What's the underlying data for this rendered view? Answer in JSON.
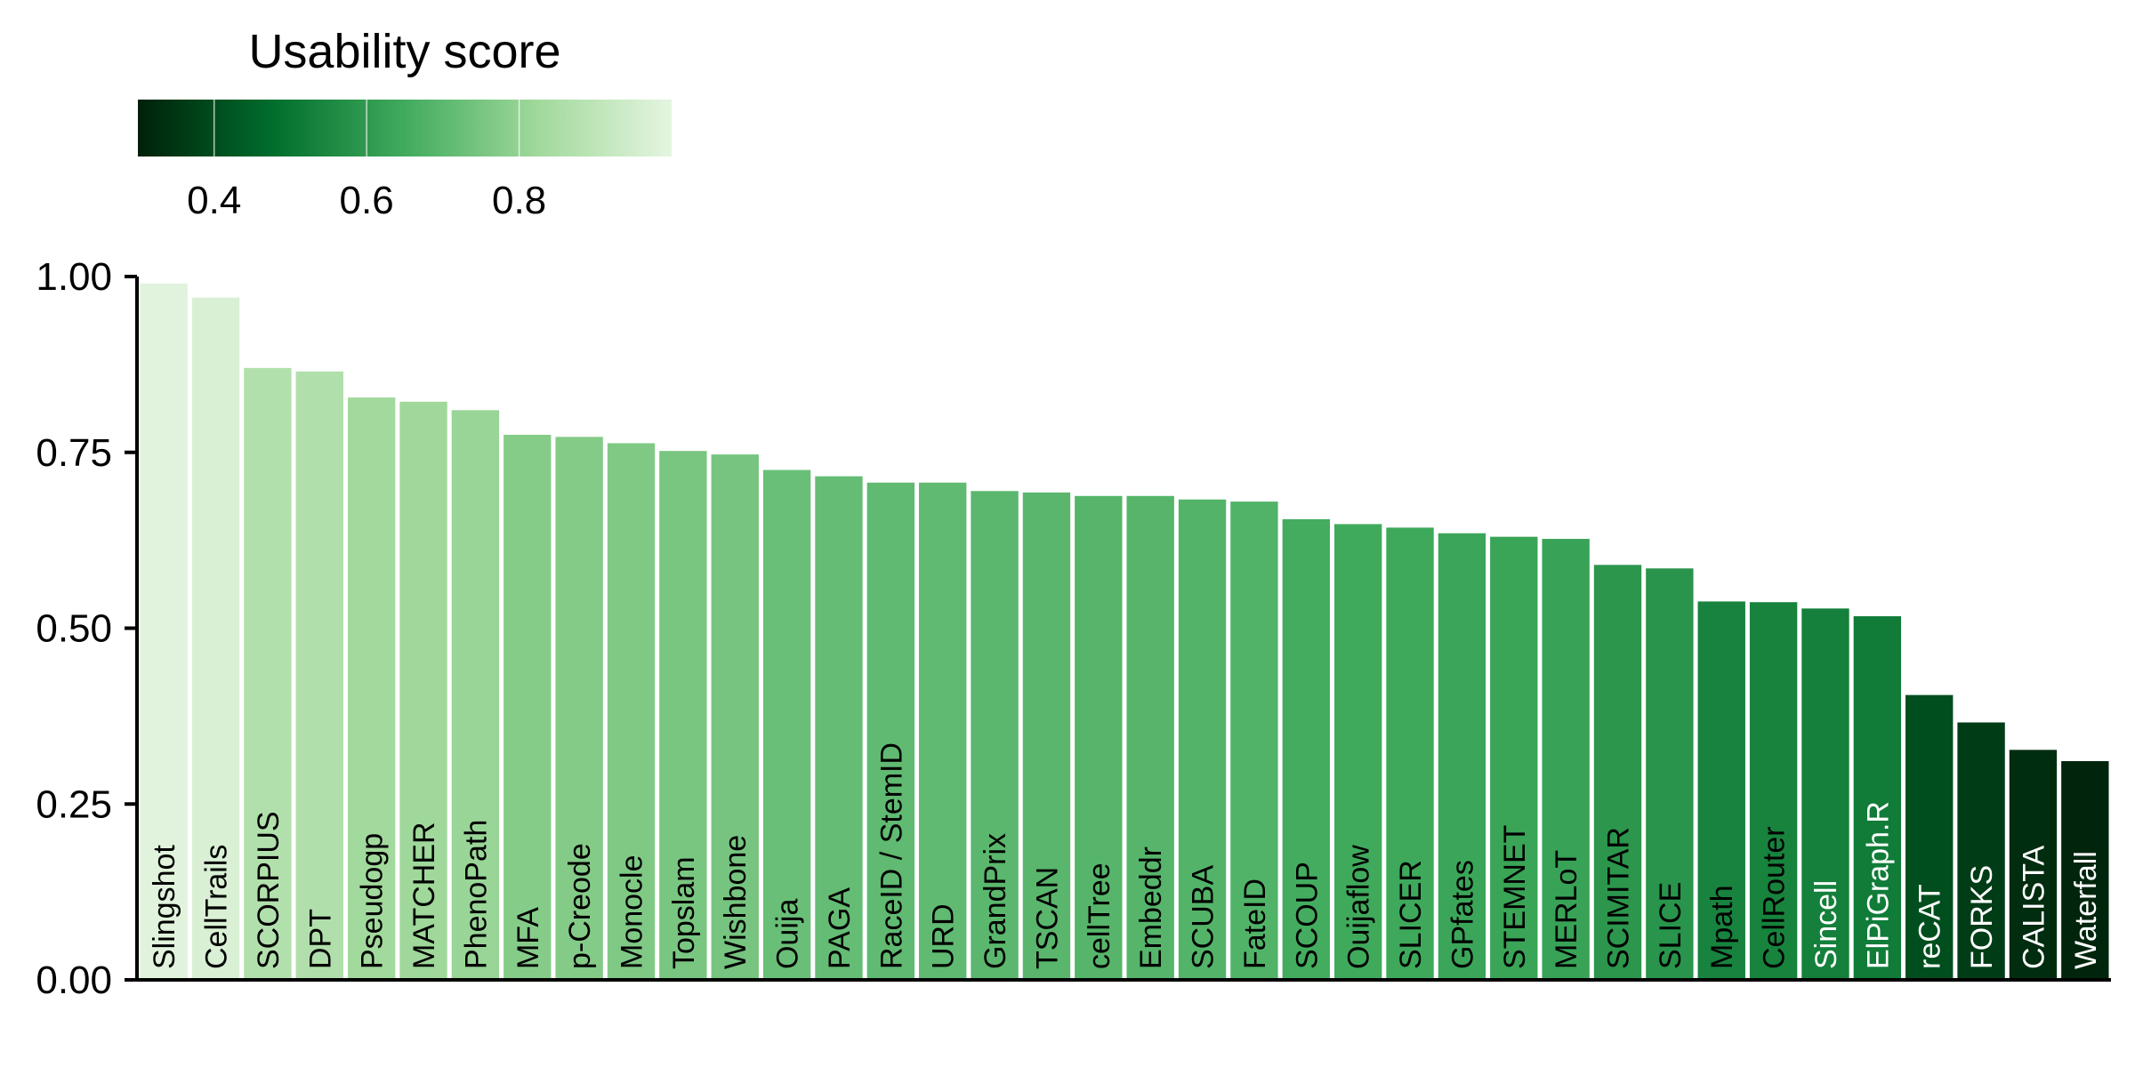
{
  "chart_data": {
    "type": "bar",
    "title": "",
    "xlabel": "",
    "ylabel": "",
    "ylim": [
      0,
      1
    ],
    "yticks": [
      {
        "value": 0.0,
        "label": "0.00"
      },
      {
        "value": 0.25,
        "label": "0.25"
      },
      {
        "value": 0.5,
        "label": "0.50"
      },
      {
        "value": 0.75,
        "label": "0.75"
      },
      {
        "value": 1.0,
        "label": "1.00"
      }
    ],
    "categories": [
      "Slingshot",
      "CellTrails",
      "SCORPIUS",
      "DPT",
      "Pseudogp",
      "MATCHER",
      "PhenoPath",
      "MFA",
      "p-Creode",
      "Monocle",
      "Topslam",
      "Wishbone",
      "Ouija",
      "PAGA",
      "RaceID / StemID",
      "URD",
      "GrandPrix",
      "TSCAN",
      "cellTree",
      "Embeddr",
      "SCUBA",
      "FateID",
      "SCOUP",
      "Ouijaflow",
      "SLICER",
      "GPfates",
      "STEMNET",
      "MERLoT",
      "SCIMITAR",
      "SLICE",
      "Mpath",
      "CellRouter",
      "Sincell",
      "ElPiGraph.R",
      "reCAT",
      "FORKS",
      "CALISTA",
      "Waterfall"
    ],
    "values": [
      0.99,
      0.97,
      0.87,
      0.865,
      0.828,
      0.822,
      0.81,
      0.775,
      0.772,
      0.763,
      0.752,
      0.747,
      0.725,
      0.716,
      0.707,
      0.707,
      0.695,
      0.693,
      0.688,
      0.688,
      0.683,
      0.68,
      0.655,
      0.648,
      0.643,
      0.635,
      0.63,
      0.627,
      0.59,
      0.585,
      0.538,
      0.537,
      0.528,
      0.517,
      0.405,
      0.366,
      0.327,
      0.311
    ],
    "grid": false,
    "legend": "none",
    "colorbar": {
      "title": "Usability score",
      "placement": "top-left",
      "range": [
        0.3,
        1.0
      ],
      "ticks": [
        {
          "value": 0.4,
          "label": "0.4"
        },
        {
          "value": 0.6,
          "label": "0.6"
        },
        {
          "value": 0.8,
          "label": "0.8"
        }
      ],
      "colors": [
        "#00200a",
        "#006d2c",
        "#41ab5d",
        "#a1d99b",
        "#e5f5e0"
      ]
    },
    "label_color_dark_bg": "#ffffff",
    "label_color_light_bg": "#000000"
  }
}
